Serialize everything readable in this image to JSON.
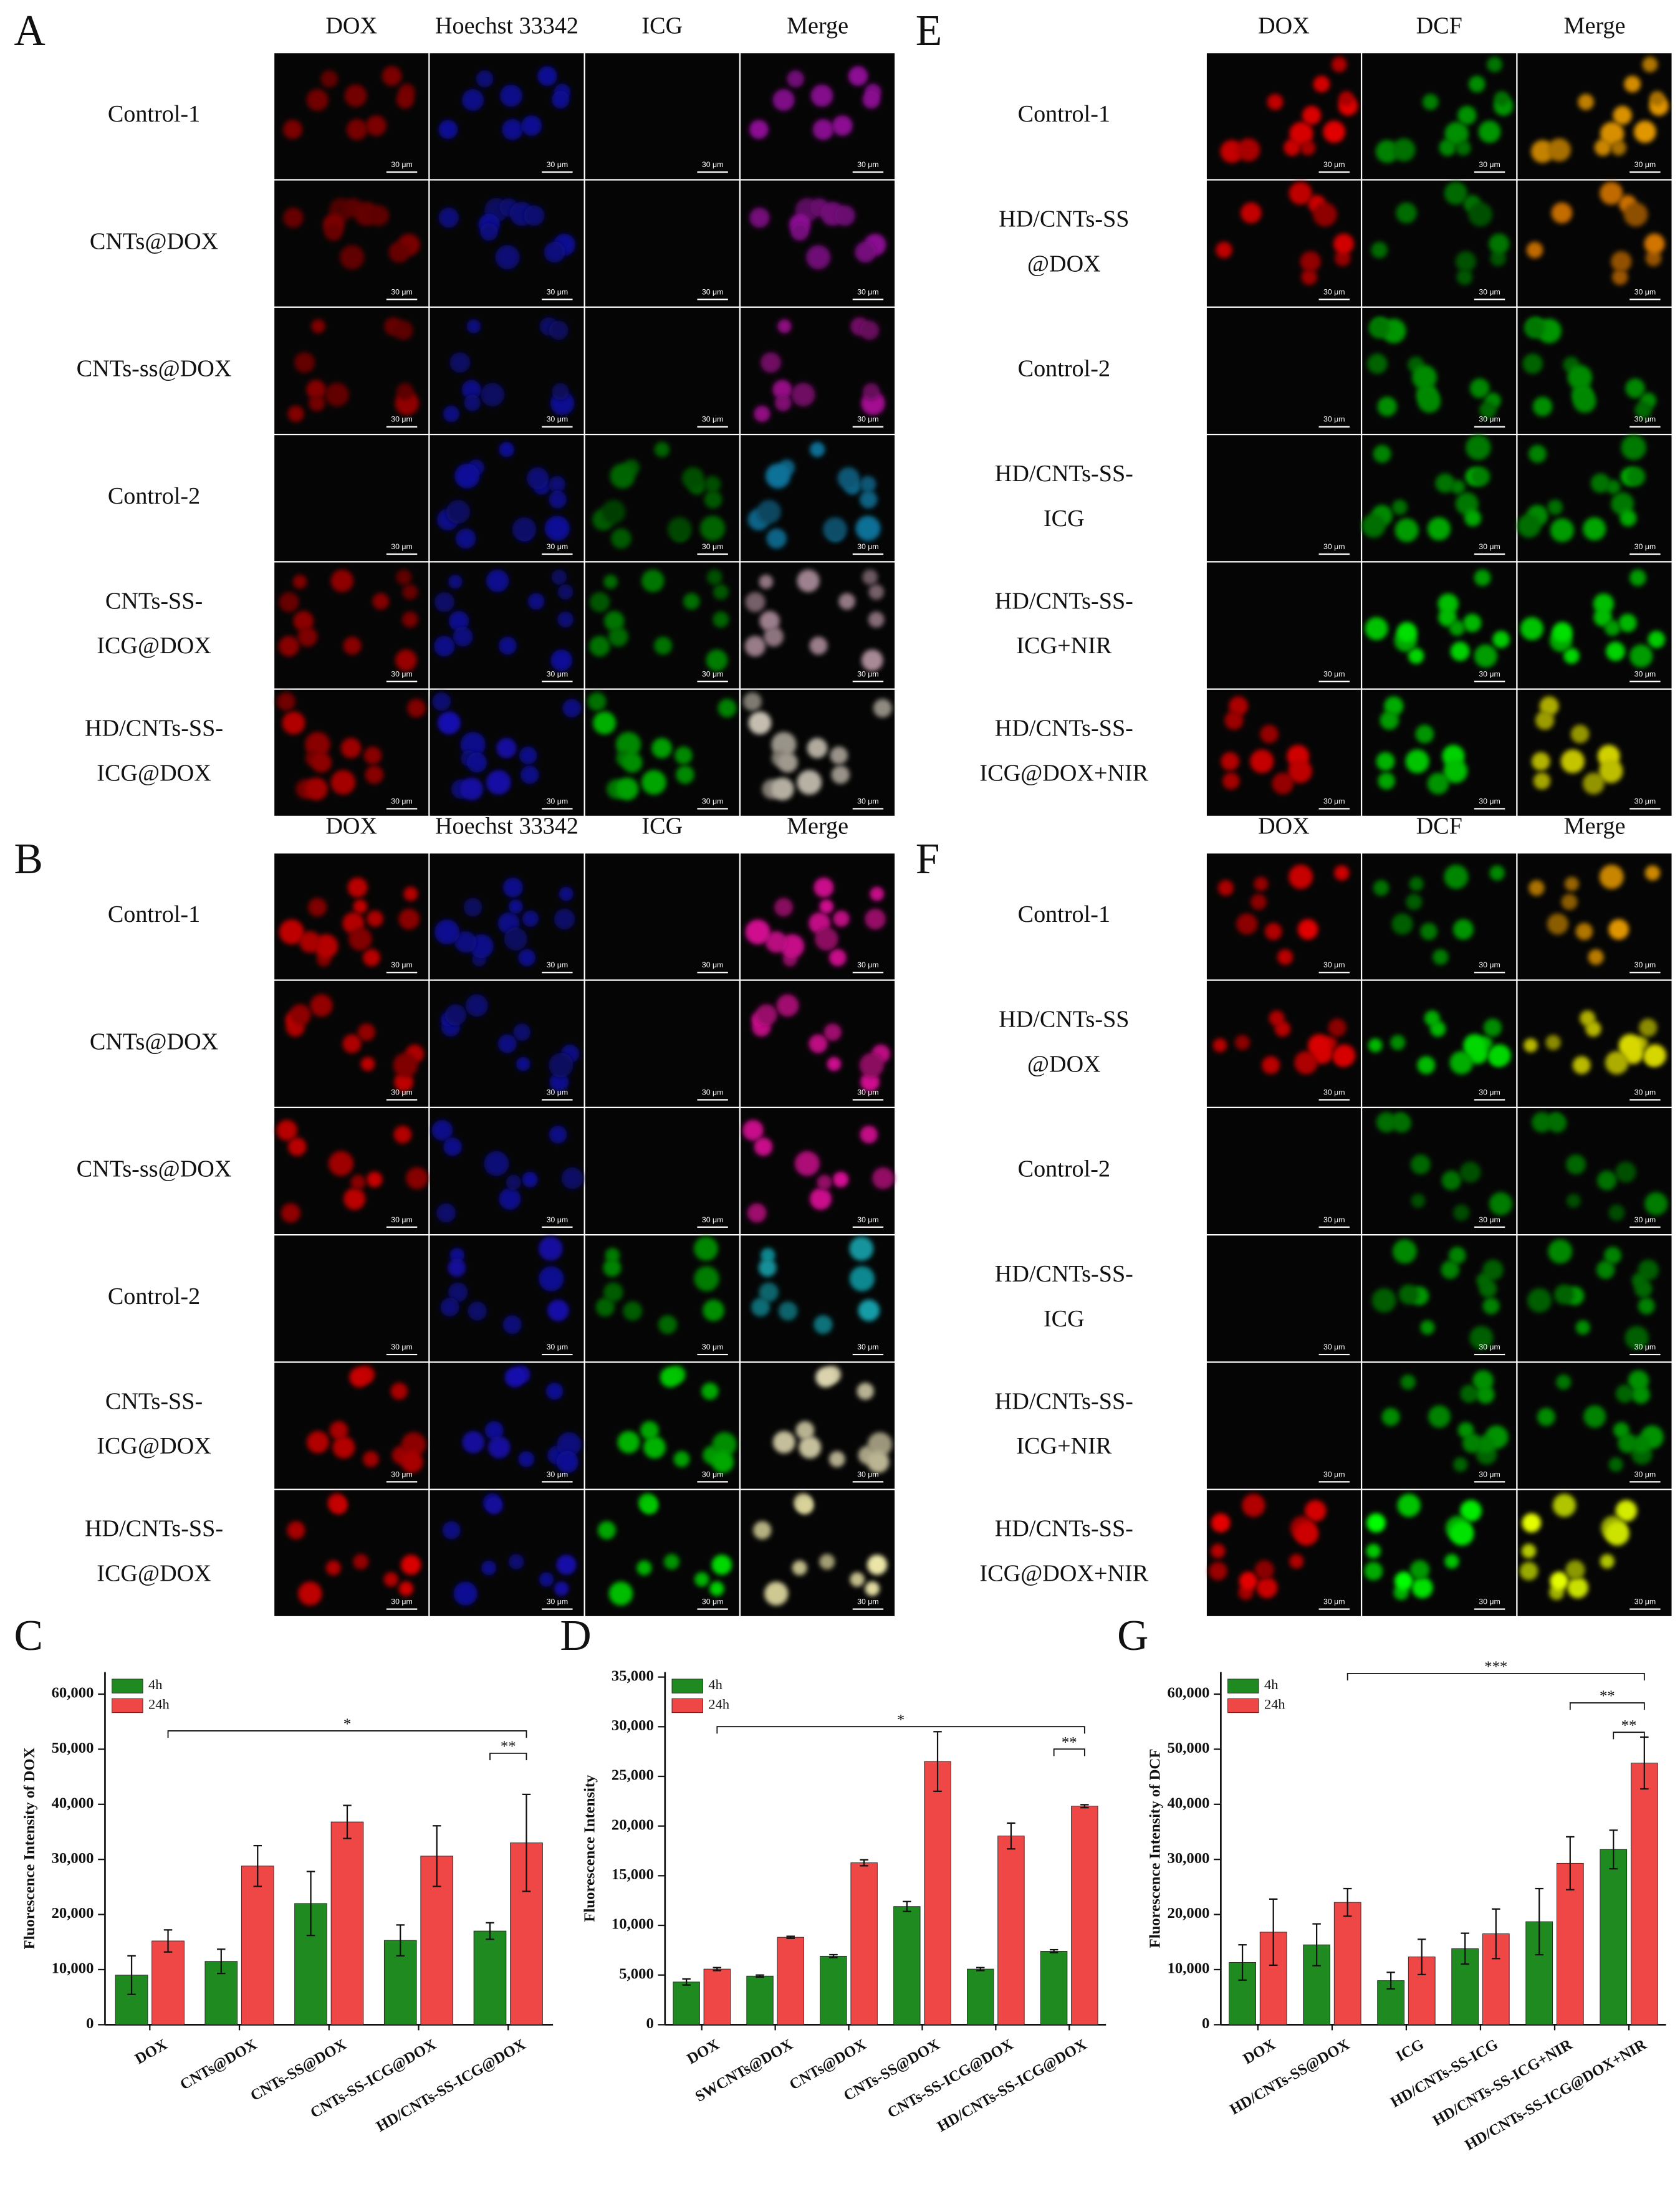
{
  "panels": [
    {
      "label": "A",
      "columns": [
        "DOX",
        "Hoechst 33342",
        "ICG",
        "Merge"
      ],
      "rows": [
        [
          "Control-1"
        ],
        [
          "CNTs@DOX"
        ],
        [
          "CNTs-ss@DOX"
        ],
        [
          "Control-2"
        ],
        [
          "CNTs-SS-",
          "ICG@DOX"
        ],
        [
          "HD/CNTs-SS-",
          "ICG@DOX"
        ]
      ]
    },
    {
      "label": "E",
      "columns": [
        "DOX",
        "DCF",
        "Merge"
      ],
      "rows": [
        [
          "Control-1"
        ],
        [
          "HD/CNTs-SS",
          "@DOX"
        ],
        [
          "Control-2"
        ],
        [
          "HD/CNTs-SS-",
          "ICG"
        ],
        [
          "HD/CNTs-SS-",
          "ICG+NIR"
        ],
        [
          "HD/CNTs-SS-",
          "ICG@DOX+NIR"
        ]
      ]
    },
    {
      "label": "B",
      "columns": [
        "DOX",
        "Hoechst 33342",
        "ICG",
        "Merge"
      ],
      "rows": [
        [
          "Control-1"
        ],
        [
          "CNTs@DOX"
        ],
        [
          "CNTs-ss@DOX"
        ],
        [
          "Control-2"
        ],
        [
          "CNTs-SS-",
          "ICG@DOX"
        ],
        [
          "HD/CNTs-SS-",
          "ICG@DOX"
        ]
      ]
    },
    {
      "label": "F",
      "columns": [
        "DOX",
        "DCF",
        "Merge"
      ],
      "rows": [
        [
          "Control-1"
        ],
        [
          "HD/CNTs-SS",
          "@DOX"
        ],
        [
          "Control-2"
        ],
        [
          "HD/CNTs-SS-",
          "ICG"
        ],
        [
          "HD/CNTs-SS-",
          "ICG+NIR"
        ],
        [
          "HD/CNTs-SS-",
          "ICG@DOX+NIR"
        ]
      ]
    }
  ],
  "scale_bar": "30 μm",
  "chart_data": [
    {
      "type": "bar",
      "label": "C",
      "ylabel": "Fluorescence Intensity of DOX",
      "categories": [
        "DOX",
        "CNTs@DOX",
        "CNTs-SS@DOX",
        "CNTs-SS-ICG@DOX",
        "HD/CNTs-SS-ICG@DOX"
      ],
      "series": [
        {
          "name": "4h",
          "color": "#1f8a1f",
          "values": [
            9000,
            11500,
            22000,
            15300,
            17000
          ],
          "errors": [
            3500,
            2200,
            5800,
            2800,
            1500
          ]
        },
        {
          "name": "24h",
          "color": "#ef4646",
          "values": [
            15200,
            28800,
            36800,
            30600,
            33000
          ],
          "errors": [
            2000,
            3700,
            3000,
            5500,
            8800
          ]
        }
      ],
      "ylim": [
        0,
        64000
      ],
      "yticks": [
        0,
        {
          "value": 10000,
          "label": "10,000"
        },
        {
          "value": 20000,
          "label": "20,000"
        },
        {
          "value": 30000,
          "label": "30,000"
        },
        {
          "value": 40000,
          "label": "40,000"
        },
        {
          "value": 50000,
          "label": "50,000"
        },
        {
          "value": 60000,
          "label": "60,000"
        }
      ],
      "legend": "upper left",
      "annotations": [
        {
          "text": "*"
        },
        {
          "text": "**"
        }
      ]
    },
    {
      "type": "bar",
      "label": "D",
      "ylabel": "Fluorescence Intensity",
      "categories": [
        "DOX",
        "SWCNTs@DOX",
        "CNTs@DOX",
        "CNTs-SS@DOX",
        "CNTs-SS-ICG@DOX",
        "HD/CNTs-SS-ICG@DOX"
      ],
      "series": [
        {
          "name": "4h",
          "color": "#1f8a1f",
          "values": [
            4300,
            4900,
            6900,
            11900,
            5600,
            7400
          ],
          "errors": [
            300,
            100,
            150,
            500,
            150,
            150
          ]
        },
        {
          "name": "24h",
          "color": "#ef4646",
          "values": [
            5600,
            8800,
            16300,
            26500,
            19000,
            22000
          ],
          "errors": [
            150,
            100,
            300,
            3000,
            1300,
            150
          ]
        }
      ],
      "ylim": [
        0,
        35500
      ],
      "yticks": [
        0,
        {
          "value": 5000,
          "label": "5,000"
        },
        {
          "value": 10000,
          "label": "10,000"
        },
        {
          "value": 15000,
          "label": "15,000"
        },
        {
          "value": 20000,
          "label": "20,000"
        },
        {
          "value": 25000,
          "label": "25,000"
        },
        {
          "value": 30000,
          "label": "30,000"
        },
        {
          "value": 35000,
          "label": "35,000"
        }
      ],
      "legend": "upper left",
      "annotations": [
        {
          "text": "*"
        },
        {
          "text": "**"
        }
      ]
    },
    {
      "type": "bar",
      "label": "G",
      "ylabel": "Fluorescence Intensity of DCF",
      "categories": [
        "DOX",
        "HD/CNTs-SS@DOX",
        "ICG",
        "HD/CNTs-SS-ICG",
        "HD/CNTs-SS-ICG+NIR",
        "HD/CNTs-SS-ICG@DOX+NIR"
      ],
      "series": [
        {
          "name": "4h",
          "color": "#1f8a1f",
          "values": [
            11300,
            14500,
            8000,
            13800,
            18700,
            31800
          ],
          "errors": [
            3200,
            3800,
            1500,
            2800,
            6000,
            3500
          ]
        },
        {
          "name": "24h",
          "color": "#ef4646",
          "values": [
            16800,
            22200,
            12300,
            16500,
            29300,
            47500
          ],
          "errors": [
            6000,
            2500,
            3200,
            4500,
            4800,
            4700
          ]
        }
      ],
      "ylim": [
        0,
        64000
      ],
      "yticks": [
        0,
        {
          "value": 10000,
          "label": "10,000"
        },
        {
          "value": 20000,
          "label": "20,000"
        },
        {
          "value": 30000,
          "label": "30,000"
        },
        {
          "value": 40000,
          "label": "40,000"
        },
        {
          "value": 50000,
          "label": "50,000"
        },
        {
          "value": 60000,
          "label": "60,000"
        }
      ],
      "legend": "upper left",
      "annotations": [
        {
          "text": "***"
        },
        {
          "text": "**"
        },
        {
          "text": "**"
        }
      ]
    }
  ]
}
